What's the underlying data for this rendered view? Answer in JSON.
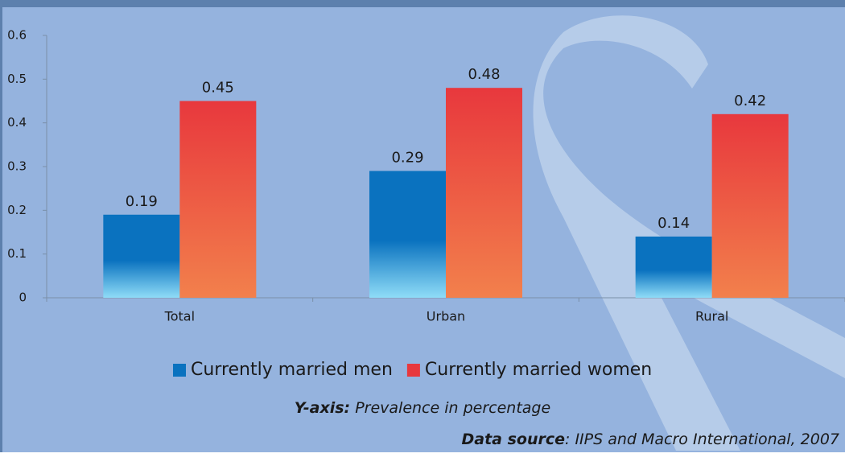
{
  "chart_data": {
    "type": "bar",
    "categories": [
      "Total",
      "Urban",
      "Rural"
    ],
    "series": [
      {
        "name": "Currently married men",
        "color": "#0a72bf",
        "values": [
          0.19,
          0.29,
          0.14
        ]
      },
      {
        "name": "Currently married women",
        "color": "#e8383d",
        "values": [
          0.45,
          0.48,
          0.42
        ]
      }
    ],
    "ylim": [
      0,
      0.6
    ],
    "yticks": [
      0,
      0.1,
      0.2,
      0.3,
      0.4,
      0.5,
      0.6
    ],
    "grid": false,
    "legend": "bottom",
    "y_axis_note": {
      "label": "Y-axis:",
      "text": "Prevalence in percentage"
    },
    "source": {
      "label": "Data source",
      "text": ": IIPS and Macro International, 2007"
    }
  }
}
